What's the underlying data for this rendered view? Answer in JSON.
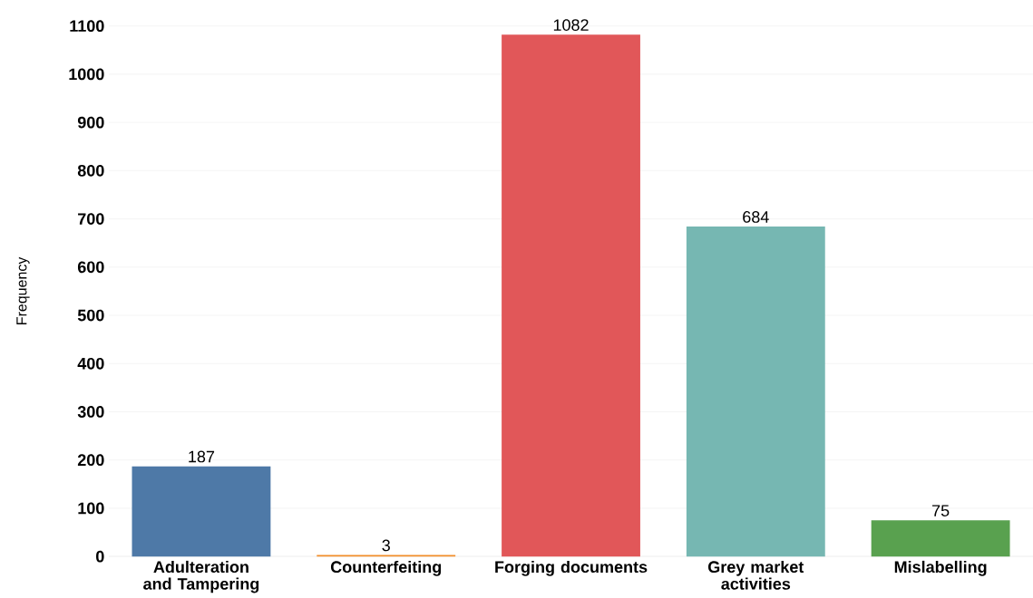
{
  "chart_data": {
    "type": "bar",
    "ylabel": "Frequency",
    "categories": [
      "Adulteration and Tampering",
      "Counterfeiting",
      "Forging documents",
      "Grey market activities",
      "Mislabelling"
    ],
    "values": [
      187,
      3,
      1082,
      684,
      75
    ],
    "colors": [
      "#4e79a7",
      "#f28e2b",
      "#e15759",
      "#76b7b2",
      "#59a14f"
    ],
    "ylim": [
      0,
      1100
    ],
    "yticks": [
      0,
      100,
      200,
      300,
      400,
      500,
      600,
      700,
      800,
      900,
      1000,
      1100
    ],
    "grid": "y",
    "data_labels": true
  }
}
